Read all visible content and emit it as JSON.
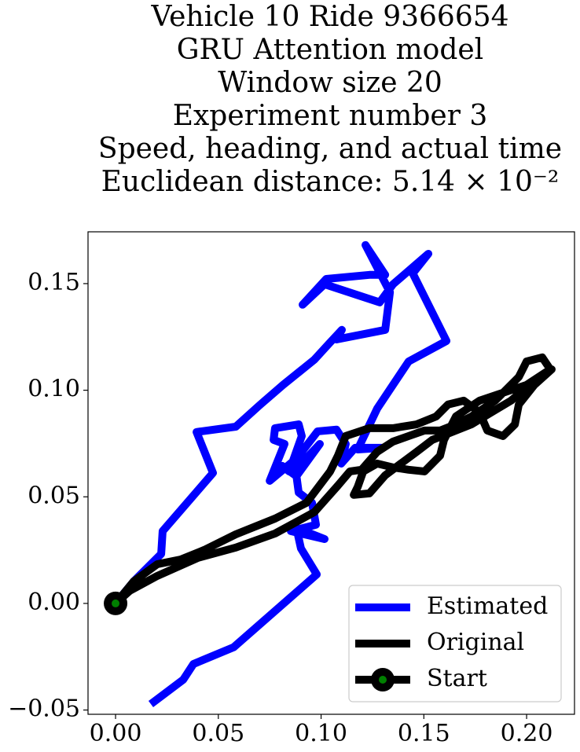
{
  "chart_data": {
    "type": "line",
    "title": [
      "Vehicle 10 Ride 9366654",
      "GRU Attention model",
      "Window size 20",
      "Experiment number 3",
      "Speed, heading, and actual time",
      "Euclidean distance: 5.14 × 10⁻²"
    ],
    "xlim": [
      -0.0134,
      0.2233
    ],
    "ylim": [
      -0.052,
      0.1743
    ],
    "xticks": [
      {
        "value": 0,
        "label": "0.00"
      },
      {
        "value": 0.05,
        "label": "0.05"
      },
      {
        "value": 0.1,
        "label": "0.10"
      },
      {
        "value": 0.15,
        "label": "0.15"
      },
      {
        "value": 0.2,
        "label": "0.20"
      }
    ],
    "yticks": [
      {
        "value": -0.05,
        "label": "−0.05"
      },
      {
        "value": 0,
        "label": "0.00"
      },
      {
        "value": 0.05,
        "label": "0.05"
      },
      {
        "value": 0.1,
        "label": "0.10"
      },
      {
        "value": 0.15,
        "label": "0.15"
      }
    ],
    "legend": "lower right",
    "series": [
      {
        "name": "Estimated",
        "color": "#0000ff",
        "x": [
          0.0187,
          0.0329,
          0.0379,
          0.0574,
          0.0979,
          0.0902,
          0.088,
          0.1017,
          0.0853,
          0.0975,
          0.0956,
          0.0891,
          0.0876,
          0.0994,
          0.088,
          0.0811,
          0.0845,
          0.0906,
          0.0891,
          0.0776,
          0.0769,
          0.0822,
          0.075,
          0.0883,
          0.0983,
          0.1075,
          0.112,
          0.1098,
          0.1166,
          0.13,
          0.1178,
          0.1273,
          0.1426,
          0.161,
          0.1446,
          0.1522,
          0.135,
          0.1285,
          0.1017,
          0.091,
          0.1025,
          0.1235,
          0.1312,
          0.1216,
          0.1335,
          0.1312,
          0.1075,
          0.1101,
          0.104,
          0.0967,
          0.0815,
          0.07,
          0.0585,
          0.0394,
          0.0474,
          0.0229,
          0.0222,
          0.0088,
          0
        ],
        "values": [
          -0.0461,
          -0.0358,
          -0.0284,
          -0.0206,
          0.0136,
          0.0258,
          0.0354,
          0.0302,
          0.0339,
          0.0369,
          0.0472,
          0.052,
          0.0627,
          0.0748,
          0.0597,
          0.0645,
          0.0619,
          0.0785,
          0.084,
          0.0822,
          0.0767,
          0.0748,
          0.0575,
          0.0682,
          0.0807,
          0.0815,
          0.0748,
          0.0656,
          0.073,
          0.073,
          0.0722,
          0.0914,
          0.1135,
          0.1231,
          0.1548,
          0.164,
          0.1497,
          0.1412,
          0.1497,
          0.1401,
          0.1522,
          0.1541,
          0.1541,
          0.1681,
          0.146,
          0.1283,
          0.1238,
          0.1283,
          0.122,
          0.1143,
          0.1025,
          0.0929,
          0.0829,
          0.0804,
          0.0612,
          0.0339,
          0.0232,
          0.0103,
          0
        ]
      },
      {
        "name": "Original",
        "color": "#000000",
        "x": [
          0,
          0.0069,
          0.0203,
          0.0402,
          0.0585,
          0.0776,
          0.0967,
          0.1082,
          0.114,
          0.1197,
          0.1273,
          0.135,
          0.1426,
          0.1503,
          0.1579,
          0.1656,
          0.1732,
          0.1847,
          0.1962,
          0.2,
          0.2076,
          0.2115,
          0.2,
          0.1885,
          0.1771,
          0.1656,
          0.1598,
          0.1579,
          0.1503,
          0.1426,
          0.135,
          0.1273,
          0.1205,
          0.1178,
          0.1159,
          0.1235,
          0.1312,
          0.1388,
          0.1465,
          0.1541,
          0.1656,
          0.1732,
          0.1828,
          0.1924,
          0.2038,
          0.2122,
          0.2038,
          0.1962,
          0.1943,
          0.1885,
          0.1809,
          0.1771,
          0.1694,
          0.1618,
          0.156,
          0.1465,
          0.135,
          0.1235,
          0.112,
          0.1082,
          0.1044,
          0.0987,
          0.0929,
          0.0776,
          0.0585,
          0.0432,
          0.0317,
          0.0203,
          0.0088,
          0
        ],
        "values": [
          0,
          0.0059,
          0.0129,
          0.0214,
          0.0262,
          0.0328,
          0.0428,
          0.0553,
          0.0619,
          0.0627,
          0.0711,
          0.0759,
          0.0785,
          0.0811,
          0.0811,
          0.084,
          0.0877,
          0.0951,
          0.1062,
          0.1135,
          0.1154,
          0.1098,
          0.1025,
          0.0988,
          0.0951,
          0.0877,
          0.0767,
          0.0693,
          0.0619,
          0.0627,
          0.0638,
          0.0656,
          0.0619,
          0.0546,
          0.0509,
          0.0516,
          0.0601,
          0.0656,
          0.0711,
          0.0767,
          0.0811,
          0.084,
          0.0896,
          0.0951,
          0.1043,
          0.1098,
          0.1025,
          0.0933,
          0.084,
          0.0785,
          0.0811,
          0.0896,
          0.0951,
          0.0933,
          0.0877,
          0.084,
          0.0822,
          0.0822,
          0.0785,
          0.0693,
          0.0619,
          0.0546,
          0.0472,
          0.0398,
          0.0324,
          0.0251,
          0.0206,
          0.0184,
          0.0103,
          0
        ]
      },
      {
        "name": "Start",
        "color": "#000000",
        "marker_color": "#008000",
        "x": [
          0
        ],
        "values": [
          0
        ]
      }
    ]
  }
}
